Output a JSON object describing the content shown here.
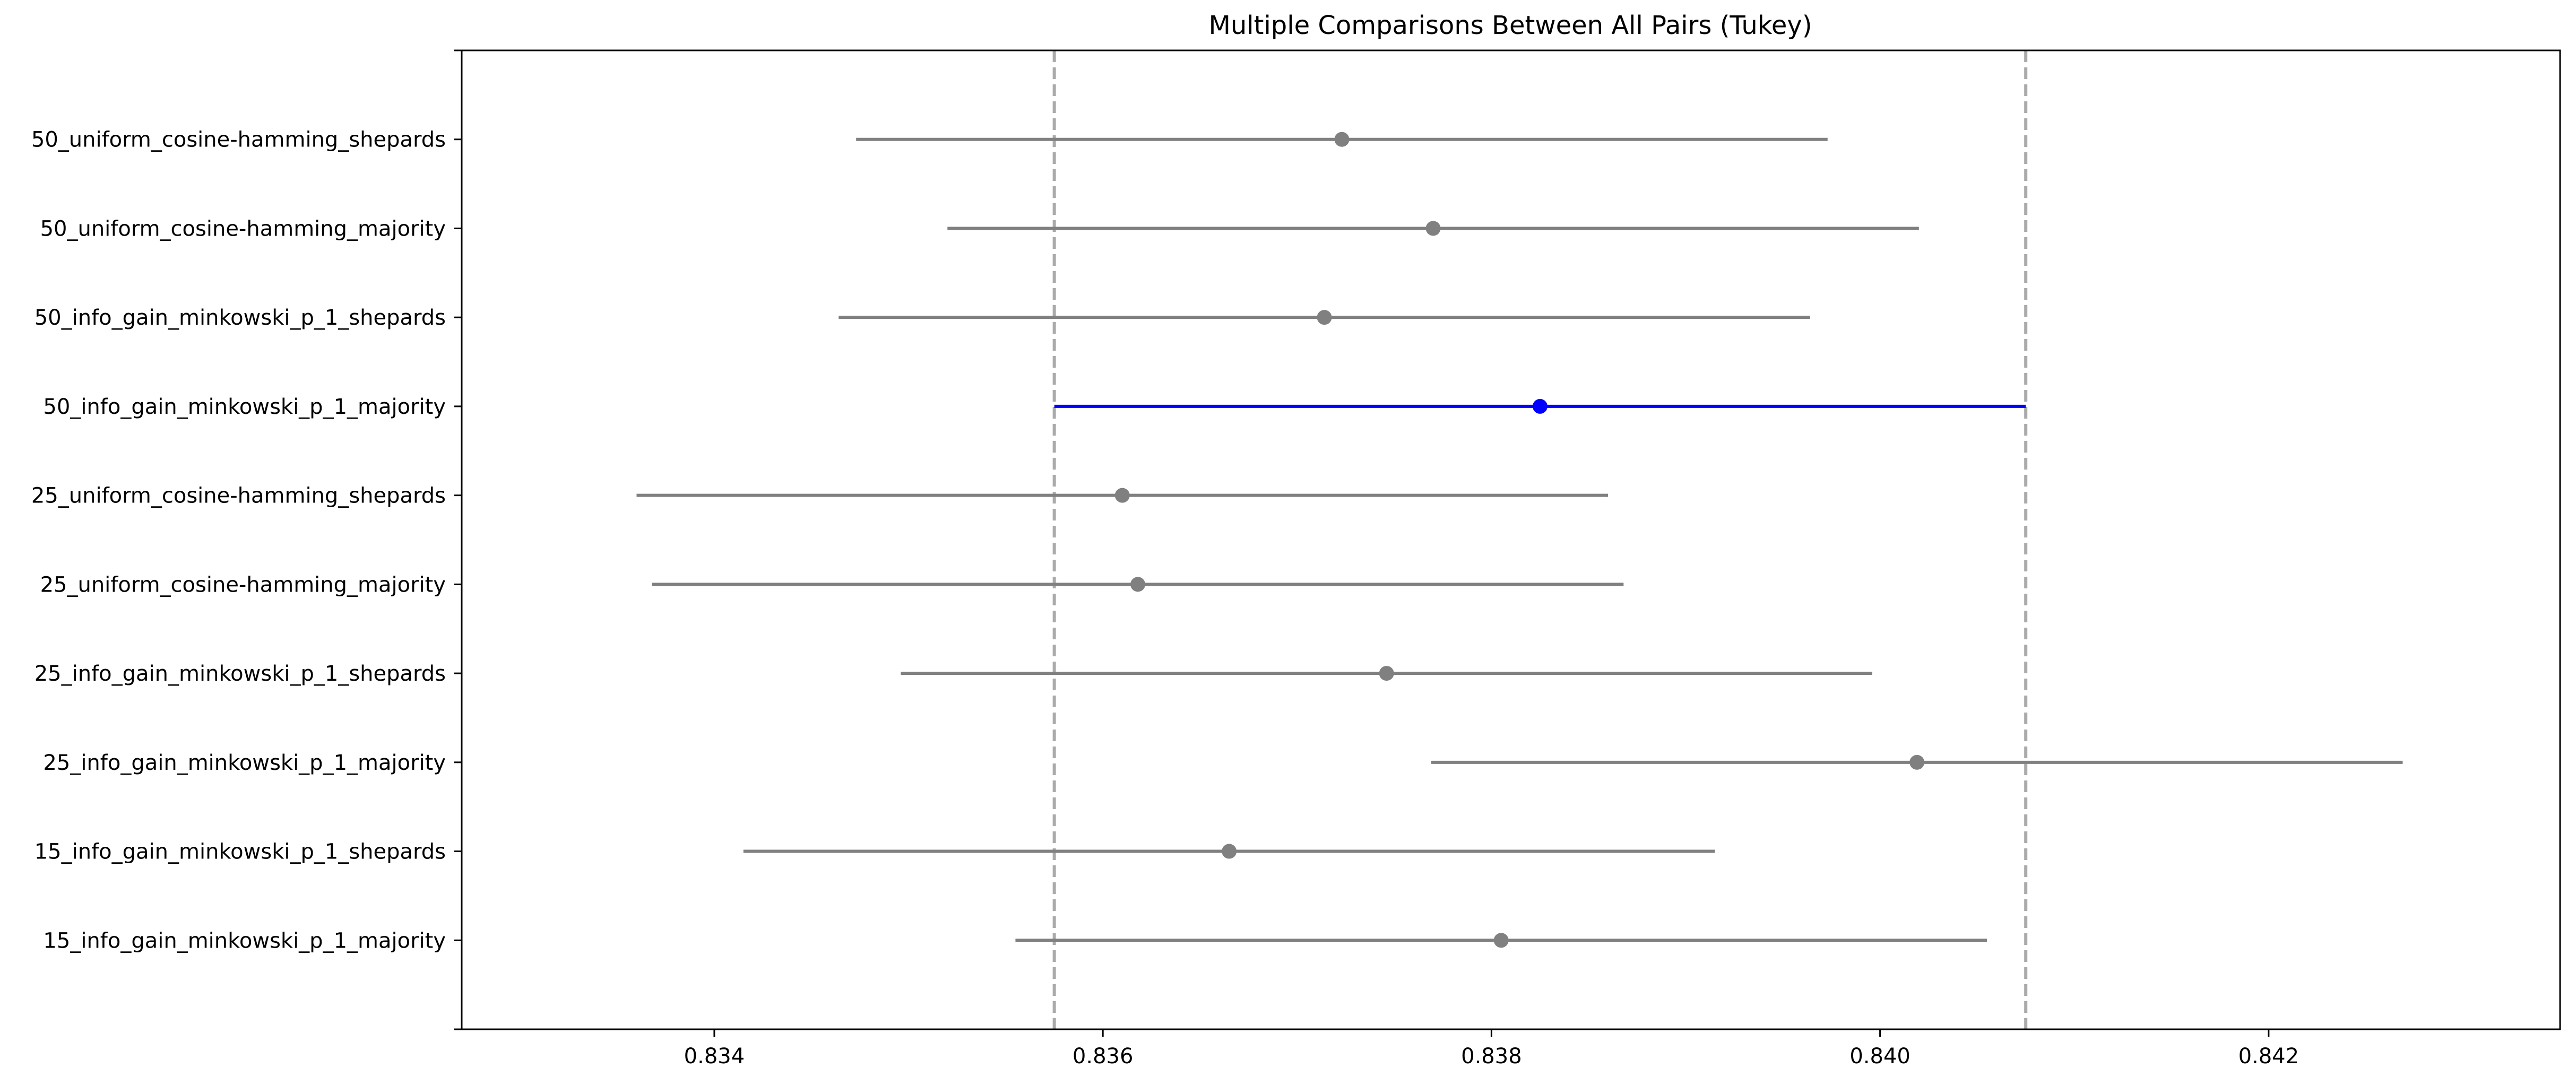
{
  "chart_data": {
    "type": "scatter",
    "title": "Multiple Comparisons Between All Pairs (Tukey)",
    "xlabel": "",
    "ylabel": "",
    "xlim": [
      0.8327,
      0.8435
    ],
    "x_ticks": [
      0.834,
      0.836,
      0.838,
      0.84,
      0.842
    ],
    "x_tick_labels": [
      "0.834",
      "0.836",
      "0.838",
      "0.840",
      "0.842"
    ],
    "grid": false,
    "legend": "none",
    "reference_lines": [
      0.83575,
      0.84075
    ],
    "colors": {
      "highlight": "#0000ff",
      "default": "#808080",
      "reference": "#aaaaaa",
      "axes": "#000000"
    },
    "groups": [
      {
        "label": "50_uniform_cosine-hamming_shepards",
        "mean": 0.83723,
        "lower": 0.83473,
        "upper": 0.83973,
        "highlight": false
      },
      {
        "label": "50_uniform_cosine-hamming_majority",
        "mean": 0.8377,
        "lower": 0.8352,
        "upper": 0.8402,
        "highlight": false
      },
      {
        "label": "50_info_gain_minkowski_p_1_shepards",
        "mean": 0.83714,
        "lower": 0.83464,
        "upper": 0.83964,
        "highlight": false
      },
      {
        "label": "50_info_gain_minkowski_p_1_majority",
        "mean": 0.83825,
        "lower": 0.83575,
        "upper": 0.84075,
        "highlight": true
      },
      {
        "label": "25_uniform_cosine-hamming_shepards",
        "mean": 0.8361,
        "lower": 0.8336,
        "upper": 0.8386,
        "highlight": false
      },
      {
        "label": "25_uniform_cosine-hamming_majority",
        "mean": 0.83618,
        "lower": 0.83368,
        "upper": 0.83868,
        "highlight": false
      },
      {
        "label": "25_info_gain_minkowski_p_1_shepards",
        "mean": 0.83746,
        "lower": 0.83496,
        "upper": 0.83996,
        "highlight": false
      },
      {
        "label": "25_info_gain_minkowski_p_1_majority",
        "mean": 0.84019,
        "lower": 0.83769,
        "upper": 0.84269,
        "highlight": false
      },
      {
        "label": "15_info_gain_minkowski_p_1_shepards",
        "mean": 0.83665,
        "lower": 0.83415,
        "upper": 0.83915,
        "highlight": false
      },
      {
        "label": "15_info_gain_minkowski_p_1_majority",
        "mean": 0.83805,
        "lower": 0.83555,
        "upper": 0.84055,
        "highlight": false
      }
    ]
  }
}
